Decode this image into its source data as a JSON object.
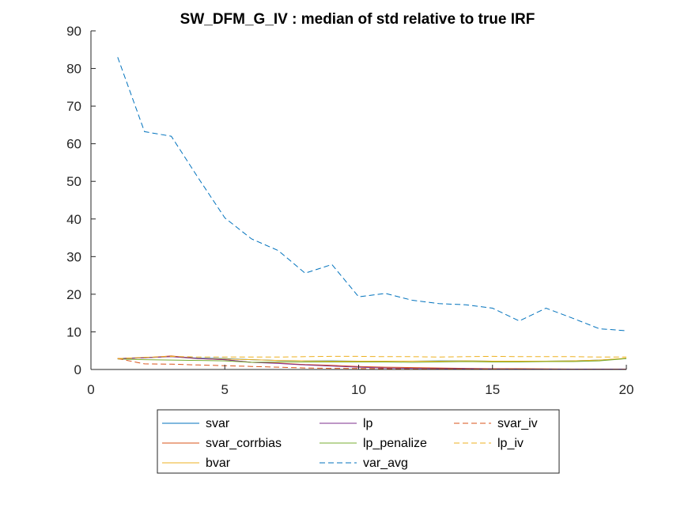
{
  "chart_data": {
    "type": "line",
    "title": "SW_DFM_G_IV : median of std relative to true IRF",
    "xlabel": "",
    "ylabel": "",
    "xlim": [
      0,
      20
    ],
    "ylim": [
      0,
      90
    ],
    "xticks": [
      0,
      5,
      10,
      15,
      20
    ],
    "yticks": [
      0,
      10,
      20,
      30,
      40,
      50,
      60,
      70,
      80,
      90
    ],
    "x": [
      1,
      2,
      3,
      4,
      5,
      6,
      7,
      8,
      9,
      10,
      11,
      12,
      13,
      14,
      15,
      16,
      17,
      18,
      19,
      20
    ],
    "legend_position": "bottom-outside",
    "series": [
      {
        "name": "svar",
        "color": "#0072BD",
        "dash": false,
        "values": [
          2.9,
          3.1,
          3.5,
          3.0,
          2.9,
          2.6,
          2.4,
          2.3,
          2.3,
          2.2,
          2.2,
          2.2,
          2.3,
          2.3,
          2.2,
          2.2,
          2.2,
          2.3,
          2.5,
          2.9
        ]
      },
      {
        "name": "svar_corrbias",
        "color": "#D95319",
        "dash": false,
        "values": [
          2.9,
          3.1,
          3.6,
          2.9,
          2.6,
          1.9,
          1.7,
          1.3,
          1.1,
          0.8,
          0.6,
          0.5,
          0.4,
          0.3,
          0.2,
          0.2,
          0.15,
          0.1,
          0.1,
          0.1
        ]
      },
      {
        "name": "bvar",
        "color": "#EDB120",
        "dash": false,
        "values": [
          2.9,
          3.2,
          3.4,
          2.9,
          2.8,
          2.6,
          2.4,
          2.3,
          2.2,
          2.2,
          2.2,
          2.2,
          2.2,
          2.3,
          2.2,
          2.2,
          2.2,
          2.3,
          2.5,
          3.0
        ]
      },
      {
        "name": "lp",
        "color": "#7E2F8E",
        "dash": false,
        "values": [
          2.9,
          3.1,
          3.4,
          2.9,
          2.6,
          1.9,
          1.6,
          1.2,
          0.9,
          0.6,
          0.4,
          0.3,
          0.2,
          0.2,
          0.15,
          0.1,
          0.1,
          0.1,
          0.1,
          0.1
        ]
      },
      {
        "name": "lp_penalize",
        "color": "#77AC30",
        "dash": false,
        "values": [
          2.8,
          2.6,
          2.5,
          2.4,
          2.3,
          1.9,
          2.0,
          2.0,
          2.0,
          2.0,
          2.0,
          1.9,
          2.0,
          2.1,
          2.0,
          2.0,
          2.1,
          2.1,
          2.3,
          2.9
        ]
      },
      {
        "name": "var_avg",
        "color": "#0072BD",
        "dash": true,
        "values": [
          83,
          63.2,
          62,
          51,
          40.3,
          34.7,
          31.6,
          25.6,
          27.9,
          19.3,
          20.2,
          18.4,
          17.5,
          17.2,
          16.3,
          12.9,
          16.3,
          13.6,
          10.8,
          10.3
        ]
      },
      {
        "name": "svar_iv",
        "color": "#D95319",
        "dash": true,
        "values": [
          2.9,
          1.5,
          1.4,
          1.2,
          1.0,
          0.8,
          0.6,
          0.4,
          0.3,
          0.25,
          0.2,
          0.15,
          0.1,
          0.1,
          0.1,
          0.05,
          0.05,
          0.05,
          0.05,
          0.05
        ]
      },
      {
        "name": "lp_iv",
        "color": "#EDB120",
        "dash": true,
        "values": [
          2.9,
          3.2,
          3.5,
          3.3,
          3.3,
          3.3,
          3.3,
          3.4,
          3.5,
          3.5,
          3.4,
          3.4,
          3.3,
          3.4,
          3.5,
          3.4,
          3.4,
          3.4,
          3.3,
          3.3
        ]
      }
    ]
  }
}
